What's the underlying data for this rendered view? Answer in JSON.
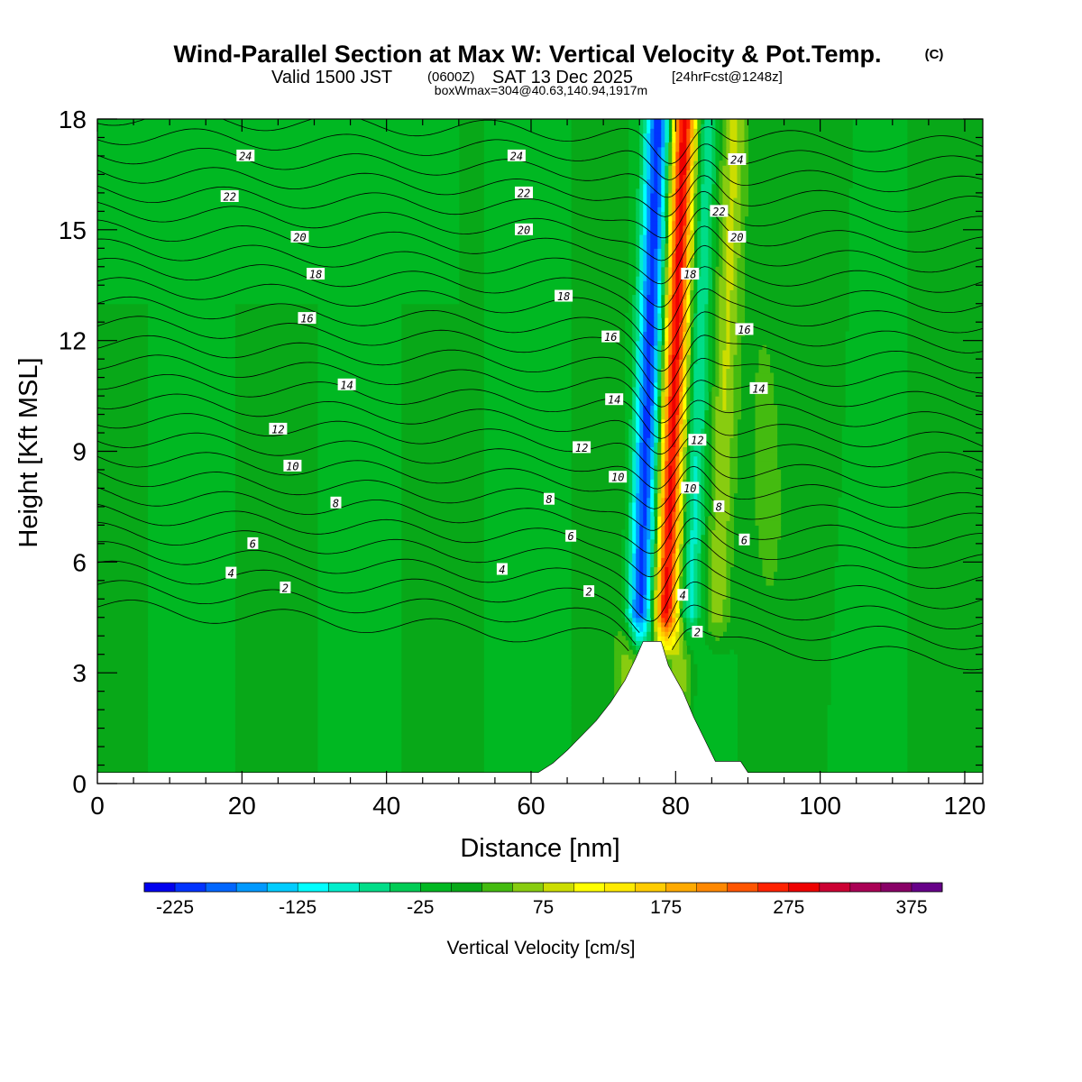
{
  "chart_data": {
    "type": "heatmap",
    "title": "Wind-Parallel Section at Max W: Vertical Velocity & Pot.Temp.",
    "title_mark": "(C)",
    "subtitle_prefix": "Valid 1500 JST",
    "subtitle_zulu": "(0600Z)",
    "subtitle_date": "SAT 13 Dec 2025",
    "subtitle_fcst": "[24hrFcst@1248z]",
    "box_info": "boxWmax=304@40.63,140.94,1917m",
    "xlabel": "Distance [nm]",
    "ylabel": "Height [Kft MSL]",
    "xlim": [
      0,
      122.5
    ],
    "ylim": [
      0,
      18
    ],
    "x_ticks": [
      0,
      20,
      40,
      60,
      80,
      100,
      120
    ],
    "y_ticks": [
      0,
      3,
      6,
      9,
      12,
      15,
      18
    ],
    "colorbar": {
      "label": "Vertical Velocity [cm/s]",
      "min": -250,
      "step": 25,
      "tick_labels": [
        "-225",
        "-125",
        "-25",
        "75",
        "175",
        "275",
        "375"
      ],
      "tick_values": [
        -225,
        -125,
        -25,
        75,
        175,
        275,
        375
      ],
      "colors": [
        "#0000ee",
        "#0033ff",
        "#0066ff",
        "#0099ff",
        "#00ccff",
        "#00ffff",
        "#00eecc",
        "#00dd88",
        "#00cc55",
        "#00b822",
        "#08a818",
        "#44bb10",
        "#88cc10",
        "#ccdd00",
        "#ffff00",
        "#ffea00",
        "#ffcc00",
        "#ffaa00",
        "#ff8800",
        "#ff5500",
        "#ff2200",
        "#ee0000",
        "#cc0033",
        "#aa0055",
        "#880066",
        "#660088"
      ]
    },
    "theta_contour_labels": [
      {
        "x": 20.5,
        "y": 17.0,
        "label": "24"
      },
      {
        "x": 18.3,
        "y": 15.9,
        "label": "22"
      },
      {
        "x": 28.0,
        "y": 14.8,
        "label": "20"
      },
      {
        "x": 30.2,
        "y": 13.8,
        "label": "18"
      },
      {
        "x": 29.0,
        "y": 12.6,
        "label": "16"
      },
      {
        "x": 34.5,
        "y": 10.8,
        "label": "14"
      },
      {
        "x": 25.0,
        "y": 9.6,
        "label": "12"
      },
      {
        "x": 27.0,
        "y": 8.6,
        "label": "10"
      },
      {
        "x": 33.0,
        "y": 7.6,
        "label": "8"
      },
      {
        "x": 21.5,
        "y": 6.5,
        "label": "6"
      },
      {
        "x": 18.5,
        "y": 5.7,
        "label": "4"
      },
      {
        "x": 26.0,
        "y": 5.3,
        "label": "2"
      },
      {
        "x": 58.0,
        "y": 17.0,
        "label": "24"
      },
      {
        "x": 59.0,
        "y": 16.0,
        "label": "22"
      },
      {
        "x": 59.0,
        "y": 15.0,
        "label": "20"
      },
      {
        "x": 64.5,
        "y": 13.2,
        "label": "18"
      },
      {
        "x": 71.0,
        "y": 12.1,
        "label": "16"
      },
      {
        "x": 71.5,
        "y": 10.4,
        "label": "14"
      },
      {
        "x": 67.0,
        "y": 9.1,
        "label": "12"
      },
      {
        "x": 72.0,
        "y": 8.3,
        "label": "10"
      },
      {
        "x": 62.5,
        "y": 7.7,
        "label": "8"
      },
      {
        "x": 65.5,
        "y": 6.7,
        "label": "6"
      },
      {
        "x": 56.0,
        "y": 5.8,
        "label": "4"
      },
      {
        "x": 68.0,
        "y": 5.2,
        "label": "2"
      },
      {
        "x": 88.5,
        "y": 16.9,
        "label": "24"
      },
      {
        "x": 86.0,
        "y": 15.5,
        "label": "22"
      },
      {
        "x": 88.5,
        "y": 14.8,
        "label": "20"
      },
      {
        "x": 82.0,
        "y": 13.8,
        "label": "18"
      },
      {
        "x": 89.5,
        "y": 12.3,
        "label": "16"
      },
      {
        "x": 91.5,
        "y": 10.7,
        "label": "14"
      },
      {
        "x": 83.0,
        "y": 9.3,
        "label": "12"
      },
      {
        "x": 82.0,
        "y": 8.0,
        "label": "10"
      },
      {
        "x": 86.0,
        "y": 7.5,
        "label": "8"
      },
      {
        "x": 89.5,
        "y": 6.6,
        "label": "6"
      },
      {
        "x": 81.0,
        "y": 5.1,
        "label": "4"
      },
      {
        "x": 83.0,
        "y": 4.1,
        "label": "2"
      }
    ],
    "terrain_profile": [
      {
        "x": 0,
        "h": 0.3
      },
      {
        "x": 61,
        "h": 0.3
      },
      {
        "x": 63,
        "h": 0.55
      },
      {
        "x": 65,
        "h": 0.9
      },
      {
        "x": 67,
        "h": 1.3
      },
      {
        "x": 69,
        "h": 1.7
      },
      {
        "x": 71,
        "h": 2.2
      },
      {
        "x": 73,
        "h": 2.8
      },
      {
        "x": 74.5,
        "h": 3.4
      },
      {
        "x": 75.5,
        "h": 3.85
      },
      {
        "x": 78,
        "h": 3.85
      },
      {
        "x": 79,
        "h": 3.2
      },
      {
        "x": 81,
        "h": 2.5
      },
      {
        "x": 82.5,
        "h": 1.8
      },
      {
        "x": 84,
        "h": 1.2
      },
      {
        "x": 85.5,
        "h": 0.6
      },
      {
        "x": 89,
        "h": 0.6
      },
      {
        "x": 90,
        "h": 0.3
      },
      {
        "x": 122.5,
        "h": 0.3
      }
    ]
  }
}
